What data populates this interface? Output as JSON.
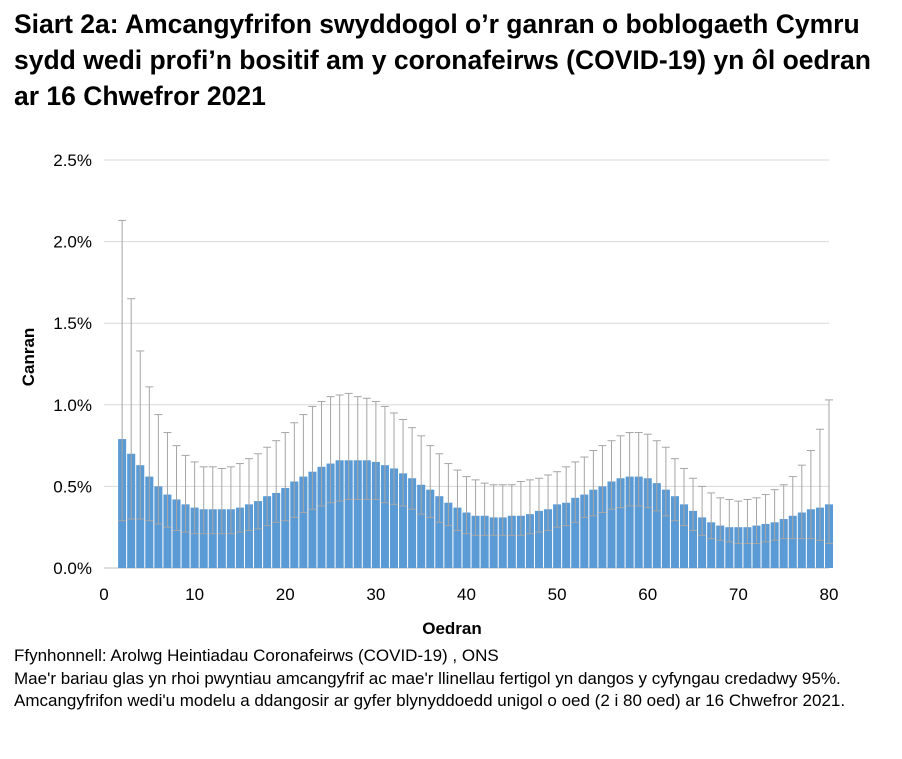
{
  "title": "Siart 2a: Amcangyfrifon swyddogol o’r ganran o boblogaeth Cymru sydd wedi profi’n bositif am y coronafeirws (COVID-19) yn ôl oedran ar 16 Chwefror 2021",
  "source": "Ffynhonnell: Arolwg Heintiadau Coronafeirws (COVID-19) , ONS",
  "note": "Mae'r bariau glas yn rhoi pwyntiau amcangyfrif ac mae'r llinellau fertigol yn dangos y cyfyngau credadwy 95%. Amcangyfrifon wedi'u modelu a ddangosir ar gyfer blynyddoedd unigol o oed (2 i 80 oed) ar 16 Chwefror 2021.",
  "chart_data": {
    "type": "bar",
    "title": "",
    "xlabel": "Oedran",
    "ylabel": "Canran",
    "xlim": [
      0,
      80
    ],
    "ylim": [
      0,
      2.5
    ],
    "x_ticks": [
      "0",
      "10",
      "20",
      "30",
      "40",
      "50",
      "60",
      "70",
      "80"
    ],
    "y_ticks": [
      "0.0%",
      "0.5%",
      "1.0%",
      "1.5%",
      "2.0%",
      "2.5%"
    ],
    "grid": true,
    "legend": "none",
    "colors": {
      "bar": "#5b9bd5",
      "error_bar": "#a5a5a5",
      "grid": "#d9d9d9"
    },
    "x": [
      2,
      3,
      4,
      5,
      6,
      7,
      8,
      9,
      10,
      11,
      12,
      13,
      14,
      15,
      16,
      17,
      18,
      19,
      20,
      21,
      22,
      23,
      24,
      25,
      26,
      27,
      28,
      29,
      30,
      31,
      32,
      33,
      34,
      35,
      36,
      37,
      38,
      39,
      40,
      41,
      42,
      43,
      44,
      45,
      46,
      47,
      48,
      49,
      50,
      51,
      52,
      53,
      54,
      55,
      56,
      57,
      58,
      59,
      60,
      61,
      62,
      63,
      64,
      65,
      66,
      67,
      68,
      69,
      70,
      71,
      72,
      73,
      74,
      75,
      76,
      77,
      78,
      79,
      80
    ],
    "values": [
      0.79,
      0.7,
      0.63,
      0.56,
      0.5,
      0.45,
      0.42,
      0.39,
      0.37,
      0.36,
      0.36,
      0.36,
      0.36,
      0.37,
      0.39,
      0.41,
      0.44,
      0.46,
      0.49,
      0.53,
      0.56,
      0.59,
      0.62,
      0.64,
      0.66,
      0.66,
      0.66,
      0.66,
      0.65,
      0.63,
      0.61,
      0.58,
      0.55,
      0.51,
      0.48,
      0.44,
      0.4,
      0.37,
      0.34,
      0.32,
      0.32,
      0.31,
      0.31,
      0.32,
      0.32,
      0.33,
      0.35,
      0.36,
      0.39,
      0.4,
      0.43,
      0.45,
      0.48,
      0.5,
      0.53,
      0.55,
      0.56,
      0.56,
      0.55,
      0.52,
      0.48,
      0.44,
      0.39,
      0.35,
      0.31,
      0.28,
      0.26,
      0.25,
      0.25,
      0.25,
      0.26,
      0.27,
      0.28,
      0.3,
      0.32,
      0.34,
      0.36,
      0.37,
      0.39
    ],
    "lower": [
      0.29,
      0.3,
      0.3,
      0.29,
      0.27,
      0.25,
      0.23,
      0.22,
      0.21,
      0.21,
      0.21,
      0.21,
      0.21,
      0.22,
      0.23,
      0.24,
      0.26,
      0.28,
      0.29,
      0.31,
      0.34,
      0.36,
      0.38,
      0.4,
      0.41,
      0.42,
      0.42,
      0.42,
      0.42,
      0.4,
      0.39,
      0.38,
      0.36,
      0.33,
      0.31,
      0.28,
      0.26,
      0.23,
      0.21,
      0.2,
      0.2,
      0.2,
      0.2,
      0.2,
      0.2,
      0.21,
      0.22,
      0.23,
      0.25,
      0.26,
      0.28,
      0.31,
      0.32,
      0.34,
      0.36,
      0.37,
      0.38,
      0.38,
      0.37,
      0.35,
      0.32,
      0.29,
      0.26,
      0.23,
      0.2,
      0.18,
      0.17,
      0.16,
      0.15,
      0.15,
      0.15,
      0.16,
      0.17,
      0.18,
      0.18,
      0.18,
      0.18,
      0.17,
      0.15
    ],
    "upper": [
      2.13,
      1.65,
      1.33,
      1.11,
      0.94,
      0.83,
      0.75,
      0.69,
      0.65,
      0.62,
      0.62,
      0.61,
      0.62,
      0.64,
      0.67,
      0.7,
      0.74,
      0.78,
      0.83,
      0.89,
      0.94,
      0.99,
      1.02,
      1.05,
      1.06,
      1.07,
      1.05,
      1.04,
      1.02,
      0.99,
      0.95,
      0.91,
      0.86,
      0.81,
      0.75,
      0.7,
      0.64,
      0.6,
      0.56,
      0.54,
      0.52,
      0.51,
      0.51,
      0.51,
      0.53,
      0.54,
      0.55,
      0.57,
      0.59,
      0.62,
      0.65,
      0.68,
      0.72,
      0.75,
      0.78,
      0.81,
      0.83,
      0.83,
      0.82,
      0.78,
      0.74,
      0.67,
      0.61,
      0.55,
      0.5,
      0.46,
      0.43,
      0.42,
      0.41,
      0.42,
      0.43,
      0.45,
      0.48,
      0.51,
      0.56,
      0.63,
      0.72,
      0.85,
      1.03
    ]
  }
}
